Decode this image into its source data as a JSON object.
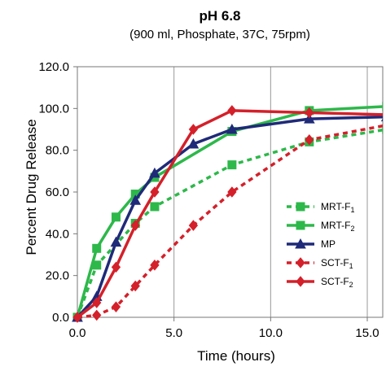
{
  "chart_data": {
    "type": "line",
    "title": "pH 6.8",
    "subtitle": "(900 ml, Phosphate, 37C, 75rpm)",
    "xlabel": "Time (hours)",
    "ylabel": "Percent Drug Release",
    "xlim": [
      0,
      15.8
    ],
    "ylim": [
      0,
      120
    ],
    "xticks": [
      0,
      5,
      10,
      15
    ],
    "xtick_labels": [
      "0.0",
      "5.0",
      "10.0",
      "15.0"
    ],
    "yticks": [
      0,
      20,
      40,
      60,
      80,
      100,
      120
    ],
    "ytick_labels": [
      "0.0",
      "20.0",
      "40.0",
      "60.0",
      "80.0",
      "100.0",
      "120.0"
    ],
    "grid": "vertical",
    "legend_position": "center-right",
    "series": [
      {
        "name": "MRT-F1",
        "label_base": "MRT-F",
        "label_sub": "1",
        "color": "#2db84a",
        "dash": "6,5",
        "marker": "square",
        "x": [
          0,
          1,
          3,
          4,
          8,
          12,
          16
        ],
        "y": [
          0,
          25,
          45,
          53,
          73,
          84,
          90
        ]
      },
      {
        "name": "MRT-F2",
        "label_base": "MRT-F",
        "label_sub": "2",
        "color": "#2db84a",
        "dash": "",
        "marker": "square",
        "x": [
          0,
          1,
          2,
          3,
          4,
          8,
          12,
          16
        ],
        "y": [
          0,
          33,
          48,
          59,
          67,
          89,
          99,
          101
        ]
      },
      {
        "name": "MP",
        "label_base": "MP",
        "label_sub": "",
        "color": "#1f2a78",
        "dash": "",
        "marker": "triangle",
        "x": [
          0,
          1,
          2,
          3,
          4,
          6,
          8,
          12,
          16
        ],
        "y": [
          0,
          10,
          36,
          56,
          69,
          83,
          90,
          95,
          96
        ]
      },
      {
        "name": "SCT-F1",
        "label_base": "SCT-F",
        "label_sub": "1",
        "color": "#d4202a",
        "dash": "6,5",
        "marker": "diamond",
        "x": [
          0,
          1,
          2,
          3,
          4,
          6,
          8,
          12,
          16
        ],
        "y": [
          0,
          1,
          5,
          15,
          25,
          44,
          60,
          85,
          92
        ]
      },
      {
        "name": "SCT-F2",
        "label_base": "SCT-F",
        "label_sub": "2",
        "color": "#d4202a",
        "dash": "",
        "marker": "diamond",
        "x": [
          0,
          1,
          2,
          3,
          4,
          6,
          8,
          12,
          16
        ],
        "y": [
          0,
          7,
          24,
          44,
          60,
          90,
          99,
          98,
          97
        ]
      }
    ]
  }
}
